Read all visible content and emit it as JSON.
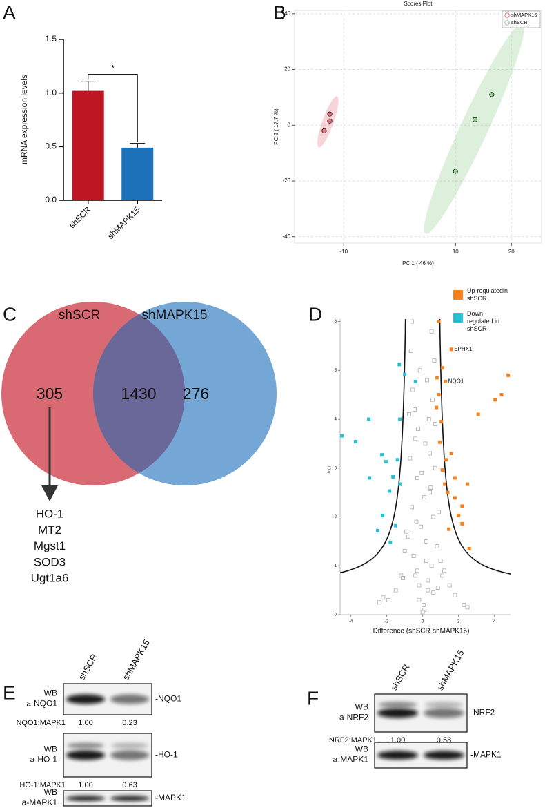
{
  "panel_labels": [
    "A",
    "B",
    "C",
    "D",
    "E",
    "F"
  ],
  "chart_data": [
    {
      "type": "bar",
      "ylabel": "mRNA expression levels",
      "categories": [
        "shSCR",
        "shMAPK15"
      ],
      "values": [
        1.02,
        0.49
      ],
      "errors": [
        0.09,
        0.04
      ],
      "colors": [
        "#be1622",
        "#1d71b8"
      ],
      "ylim": [
        0,
        1.5
      ],
      "yticks": [
        {
          "value": 0,
          "label": "0.0"
        },
        0.5,
        {
          "value": 1,
          "label": "1.0"
        },
        1.5
      ],
      "significance": "*"
    },
    {
      "type": "scatter",
      "title": "Scores Plot",
      "xlabel": "PC 1 ( 46 %)",
      "ylabel": "PC 2 ( 17.7 %)",
      "xlim": [
        -18.8,
        25.4
      ],
      "ylim": [
        -42.3,
        41.2
      ],
      "xticks": [
        -10,
        10,
        20
      ],
      "yticks": [
        -40,
        -20,
        0,
        20,
        40
      ],
      "grid": true,
      "legend": "top-right",
      "series": [
        {
          "name": "shMAPK15",
          "color": "#e0707c",
          "x": [
            -13.5,
            -12.5,
            -12.5
          ],
          "y": [
            -2,
            1.5,
            4
          ]
        },
        {
          "name": "shSCR",
          "color": "#8fcc88",
          "x": [
            16.5,
            13.5,
            10
          ],
          "y": [
            11,
            2,
            -16.5
          ]
        }
      ]
    },
    {
      "type": "venn",
      "sets": [
        "shSCR",
        "shMAPK15"
      ],
      "colors": [
        "#d96a74",
        "#74a7d5",
        "#6a6899"
      ],
      "values": [
        305,
        1430,
        276
      ],
      "annotation": [
        "HO-1",
        "MT2",
        "Mgst1",
        "SOD3",
        "Ugt1a6"
      ]
    },
    {
      "type": "scatter",
      "xlabel": "Difference (shSCR-shMAPK15)",
      "ylabel": "-Log p",
      "xlim": [
        -4.6,
        4.9
      ],
      "ylim": [
        0,
        6.05
      ],
      "xticks": [
        -4,
        -2,
        0,
        2,
        4
      ],
      "yticks": [
        0,
        1,
        2,
        3,
        4,
        5,
        6
      ],
      "legend": "top-right",
      "series": [
        {
          "name": "Up-regulatedin shSCR",
          "color": "#f58220",
          "x": [
            0.9,
            1.6,
            1.1,
            1.27,
            4.77,
            4.4,
            4.04,
            3.1,
            0.8,
            0.9,
            0.77,
            1.04,
            0.96,
            1.6,
            1.3,
            1.1,
            1.8,
            1.23,
            2.5,
            1.4,
            2.0,
            2.2,
            1.46,
            2.6,
            1.8,
            2.2
          ],
          "y": [
            6.0,
            5.43,
            5.05,
            4.77,
            4.9,
            4.5,
            4.4,
            4.1,
            4.85,
            4.5,
            4.24,
            3.95,
            3.53,
            3.3,
            3.17,
            2.96,
            2.8,
            2.67,
            2.67,
            2.5,
            2.03,
            1.86,
            1.75,
            1.35,
            2.39,
            2.22
          ]
        },
        {
          "name": "Down-regulated in shSCR",
          "color": "#29c0d6",
          "x": [
            -1.3,
            -1.0,
            -0.4,
            -3.0,
            -3.73,
            -4.5,
            -1.27,
            -2.27,
            -2.04,
            -2.96,
            -1.4,
            -1.65,
            -1.85,
            -1.27,
            -2.23,
            -2.5,
            -1.8,
            -1.5
          ],
          "y": [
            5.12,
            4.92,
            4.77,
            4.0,
            3.54,
            3.66,
            4.0,
            3.27,
            3.13,
            2.8,
            3.17,
            2.82,
            2.53,
            2.67,
            2.03,
            1.72,
            1.48,
            1.82
          ]
        }
      ],
      "background": {
        "color": "#aaaaaa",
        "x": [
          0.1,
          -0.2,
          0.3,
          -0.4,
          0.5,
          -0.5,
          0.2,
          -0.1,
          0.6,
          -0.6,
          0.4,
          -0.3,
          0.7,
          -0.7,
          0.0,
          0.15,
          -0.25,
          0.35,
          -0.45,
          0.55,
          -0.55,
          0.25,
          -0.15,
          0.65,
          -0.65,
          0.45,
          -0.35,
          0.05,
          0.8,
          -0.8,
          1.0,
          -1.0,
          1.2,
          -1.2,
          1.5,
          -1.5,
          0.9,
          -0.9,
          1.8,
          -1.9,
          2.3,
          -2.2,
          0.3,
          -0.3,
          0.2,
          -0.2,
          0.1,
          -0.05,
          0.4,
          -0.4,
          0.5,
          -0.6,
          1.1,
          -1.1,
          2.5,
          -2.4,
          0.7,
          -0.75,
          0.6,
          0.85
        ],
        "y": [
          0.1,
          0.3,
          0.5,
          0.8,
          1.0,
          1.2,
          1.5,
          1.8,
          2.0,
          2.2,
          2.5,
          2.8,
          3.0,
          3.2,
          0.05,
          3.5,
          3.8,
          4.0,
          4.2,
          4.4,
          4.6,
          4.8,
          5.0,
          5.2,
          5.4,
          2.6,
          1.9,
          0.2,
          1.4,
          1.6,
          1.1,
          1.3,
          0.9,
          0.8,
          0.6,
          0.5,
          2.1,
          1.7,
          0.4,
          0.3,
          0.2,
          0.35,
          0.7,
          0.9,
          1.1,
          0.6,
          2.4,
          2.9,
          3.3,
          3.6,
          5.8,
          6.0,
          0.8,
          0.75,
          0.15,
          0.25,
          3.9,
          4.1,
          0.45,
          0.55
        ]
      },
      "annotations": [
        {
          "text": "EPHX1",
          "x": 1.6,
          "y": 5.43
        },
        {
          "text": "NQO1",
          "x": 1.27,
          "y": 4.77
        }
      ]
    }
  ],
  "blots": [
    {
      "columns": [
        "shSCR",
        "shMAPK15"
      ],
      "rows": [
        {
          "antibody": [
            "WB",
            "a-NQO1"
          ],
          "band": "-NQO1",
          "ratio_label": "NQO1:MAPK1",
          "ratios": [
            "1.00",
            "0.23"
          ]
        },
        {
          "antibody": [
            "WB",
            "a-HO-1"
          ],
          "band": "-HO-1",
          "ratio_label": "HO-1:MAPK1",
          "ratios": [
            "1.00",
            "0.63"
          ]
        },
        {
          "antibody": [
            "WB",
            "a-MAPK1"
          ],
          "band": "-MAPK1"
        }
      ]
    },
    {
      "columns": [
        "shSCR",
        "shMAPK15"
      ],
      "rows": [
        {
          "antibody": [
            "WB",
            "a-NRF2"
          ],
          "band": "-NRF2",
          "ratio_label": "NRF2:MAPK1",
          "ratios": [
            "1.00",
            "0.58"
          ]
        },
        {
          "antibody": [
            "WB",
            "a-MAPK1"
          ],
          "band": "-MAPK1"
        }
      ]
    }
  ]
}
